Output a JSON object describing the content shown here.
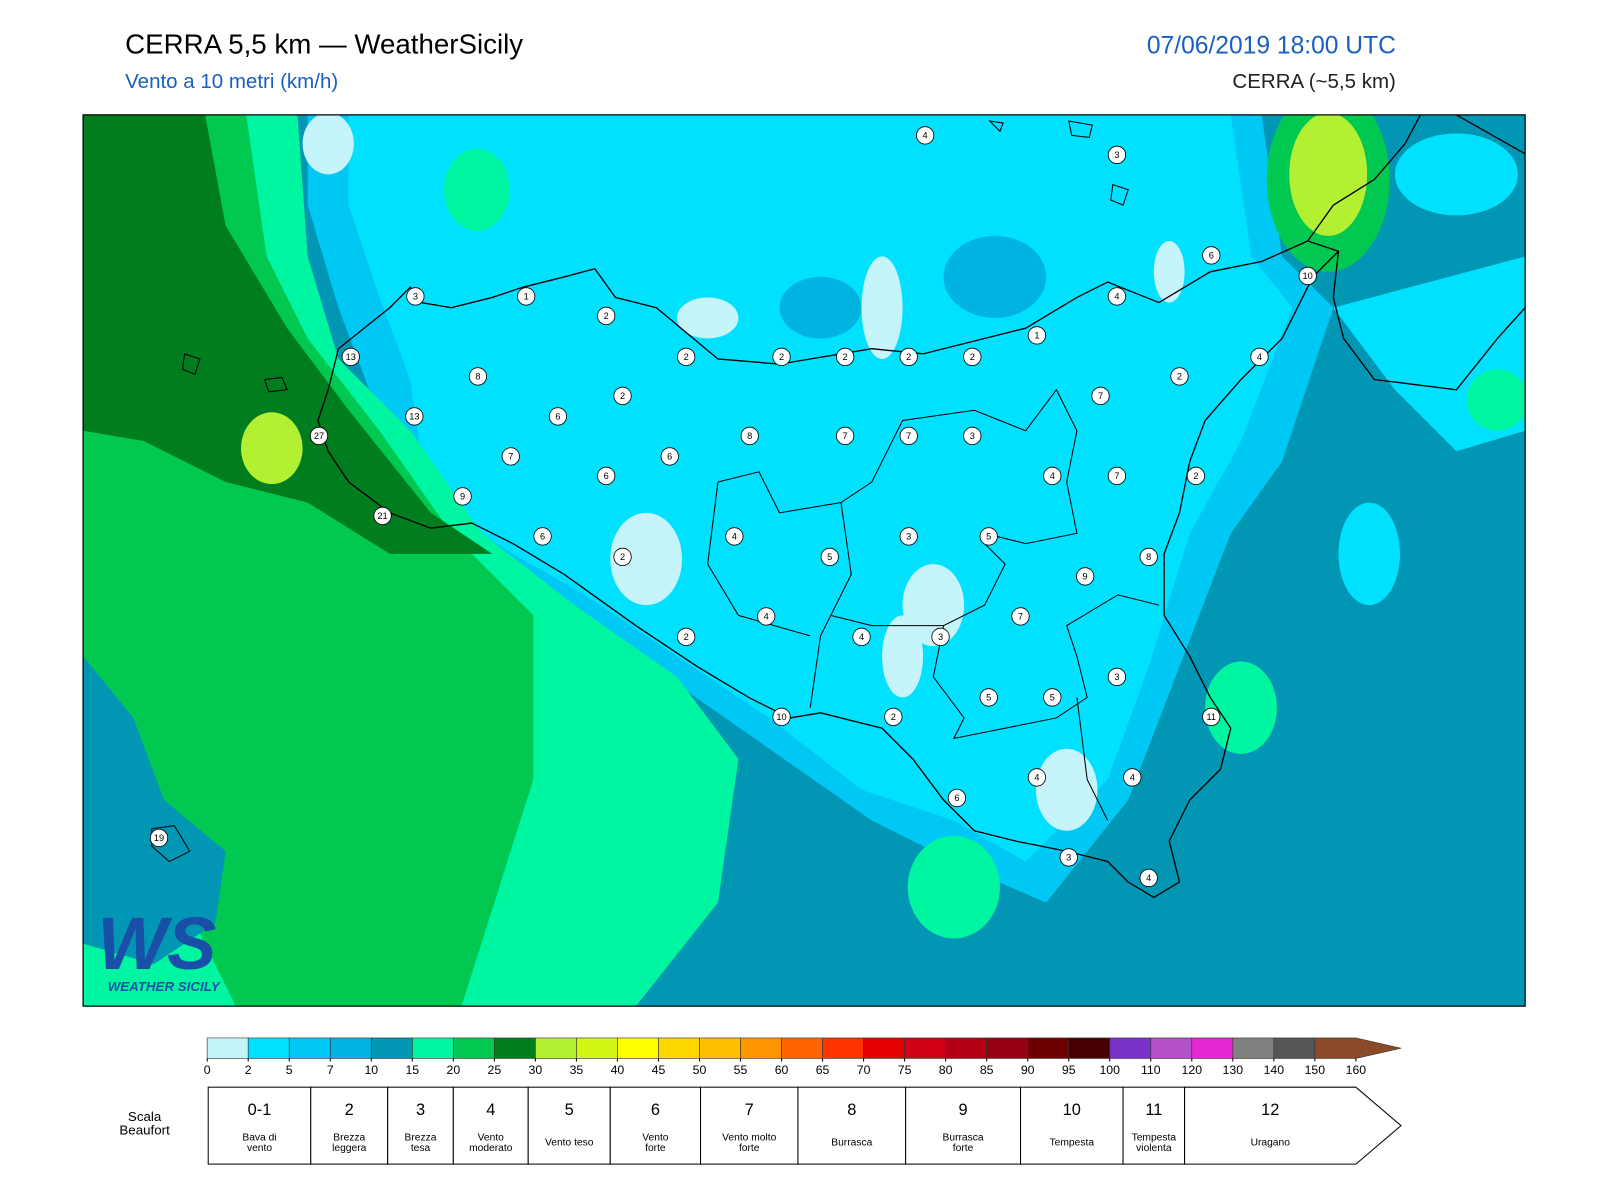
{
  "header": {
    "title": "CERRA 5,5 km — WeatherSicily",
    "subtitle": "Vento a 10 metri (km/h)",
    "datetime": "07/06/2019 18:00 UTC",
    "model": "CERRA (~5,5 km)"
  },
  "logo": {
    "mark": "WS",
    "name": "WEATHER SICILY"
  },
  "stations": [
    4,
    3,
    6,
    10,
    3,
    1,
    2,
    4,
    1,
    2,
    2,
    2,
    2,
    2,
    4,
    13,
    8,
    2,
    2,
    7,
    13,
    6,
    8,
    7,
    7,
    3,
    27,
    7,
    6,
    6,
    4,
    7,
    2,
    9,
    21,
    6,
    4,
    3,
    5,
    2,
    5,
    8,
    9,
    4,
    7,
    2,
    4,
    3,
    3,
    5,
    5,
    10,
    2,
    11,
    4,
    4,
    6,
    19,
    3,
    4
  ],
  "colorbar": {
    "ticks": [
      0,
      2,
      5,
      7,
      10,
      15,
      20,
      25,
      30,
      35,
      40,
      45,
      50,
      55,
      60,
      65,
      70,
      75,
      80,
      85,
      90,
      95,
      100,
      110,
      120,
      130,
      140,
      150,
      160
    ],
    "colors": [
      "#c6f4fb",
      "#00e1ff",
      "#00c8f5",
      "#00b4e1",
      "#0096b4",
      "#00f5a0",
      "#00c850",
      "#007d1e",
      "#b4f032",
      "#d2f514",
      "#ffff00",
      "#ffd700",
      "#ffbe00",
      "#ff9600",
      "#ff6400",
      "#ff3200",
      "#e60000",
      "#d20014",
      "#b40014",
      "#960014",
      "#6e0000",
      "#460000",
      "#7832c8",
      "#b450c8",
      "#e628d2",
      "#808080",
      "#555555",
      "#000000",
      "#8b4a28",
      "#c88040"
    ]
  },
  "beaufort": {
    "title": "Scala Beaufort",
    "levels": [
      {
        "force": "0-1",
        "label": "Bava di vento"
      },
      {
        "force": 2,
        "label": "Brezza leggera"
      },
      {
        "force": 3,
        "label": "Brezza tesa"
      },
      {
        "force": 4,
        "label": "Vento moderato"
      },
      {
        "force": 5,
        "label": "Vento teso"
      },
      {
        "force": 6,
        "label": "Vento forte"
      },
      {
        "force": 7,
        "label": "Vento molto forte"
      },
      {
        "force": 8,
        "label": "Burrasca"
      },
      {
        "force": 9,
        "label": "Burrasca forte"
      },
      {
        "force": 10,
        "label": "Tempesta"
      },
      {
        "force": 11,
        "label": "Tempesta violenta"
      },
      {
        "force": 12,
        "label": "Uragano"
      }
    ]
  }
}
